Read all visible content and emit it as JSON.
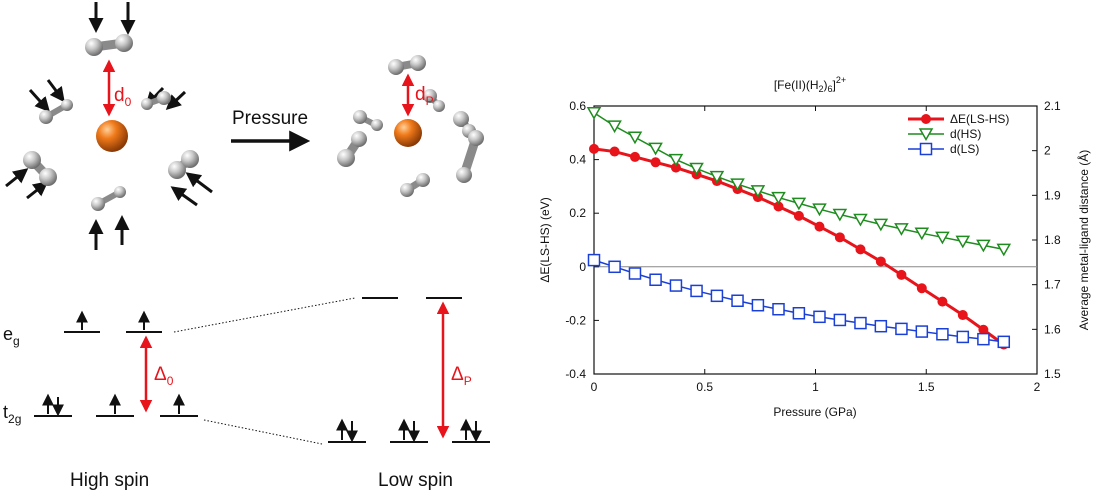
{
  "schematic": {
    "d0_label": "d",
    "d0_sub": "0",
    "dP_label": "d",
    "dP_sub": "P",
    "pressure_label": "Pressure",
    "eg_label": "e",
    "eg_sub": "g",
    "t2g_label": "t",
    "t2g_sub": "2g",
    "delta0_label": "Δ",
    "delta0_sub": "0",
    "deltaP_label": "Δ",
    "deltaP_sub": "P",
    "high_spin_label": "High spin",
    "low_spin_label": "Low spin",
    "accent_red": "#e8141b"
  },
  "chart_data": {
    "type": "line",
    "title": "[Fe(II)(H2)6]2+",
    "title_parts": {
      "main": "[Fe(II)(H",
      "sub1": "2",
      "mid": ")",
      "sub2": "6",
      "end": "]",
      "sup": "2+"
    },
    "xlabel": "Pressure (GPa)",
    "ylabel_left": "ΔE(LS-HS) (eV)",
    "ylabel_right": "Average metal-ligand distance (Å)",
    "xlim": [
      0,
      2
    ],
    "ylim_left": [
      -0.4,
      0.6
    ],
    "ylim_right": [
      1.5,
      2.1
    ],
    "xticks": [
      "0",
      "0.5",
      "1",
      "1.5",
      "2"
    ],
    "yticks_left": [
      "0.6",
      "0.4",
      "0.2",
      "0",
      "-0.2",
      "-0.4"
    ],
    "yticks_right": [
      "2.1",
      "2",
      "1.9",
      "1.8",
      "1.7",
      "1.6",
      "1.5"
    ],
    "zero_line": true,
    "legend_position": "top-right",
    "x": [
      0,
      0.093,
      0.185,
      0.278,
      0.37,
      0.463,
      0.555,
      0.648,
      0.74,
      0.833,
      0.925,
      1.018,
      1.11,
      1.203,
      1.295,
      1.388,
      1.48,
      1.573,
      1.665,
      1.758,
      1.85
    ],
    "series": [
      {
        "name": "ΔE(LS-HS)",
        "axis": "left",
        "marker": "circle",
        "color": "#e8141b",
        "values": [
          0.44,
          0.43,
          0.41,
          0.39,
          0.37,
          0.345,
          0.32,
          0.29,
          0.26,
          0.225,
          0.19,
          0.15,
          0.11,
          0.065,
          0.02,
          -0.03,
          -0.08,
          -0.13,
          -0.18,
          -0.235,
          -0.29
        ]
      },
      {
        "name": "d(HS)",
        "axis": "right",
        "marker": "triangle-down",
        "color": "#1e8c1e",
        "values": [
          2.085,
          2.055,
          2.03,
          2.005,
          1.98,
          1.96,
          1.942,
          1.925,
          1.91,
          1.895,
          1.882,
          1.869,
          1.857,
          1.846,
          1.835,
          1.825,
          1.815,
          1.806,
          1.797,
          1.788,
          1.779
        ]
      },
      {
        "name": "d(LS)",
        "axis": "right",
        "marker": "square",
        "color": "#1a3fd6",
        "values": [
          1.755,
          1.74,
          1.725,
          1.711,
          1.698,
          1.686,
          1.675,
          1.664,
          1.654,
          1.645,
          1.636,
          1.628,
          1.621,
          1.614,
          1.607,
          1.601,
          1.595,
          1.589,
          1.583,
          1.578,
          1.572
        ]
      }
    ]
  }
}
